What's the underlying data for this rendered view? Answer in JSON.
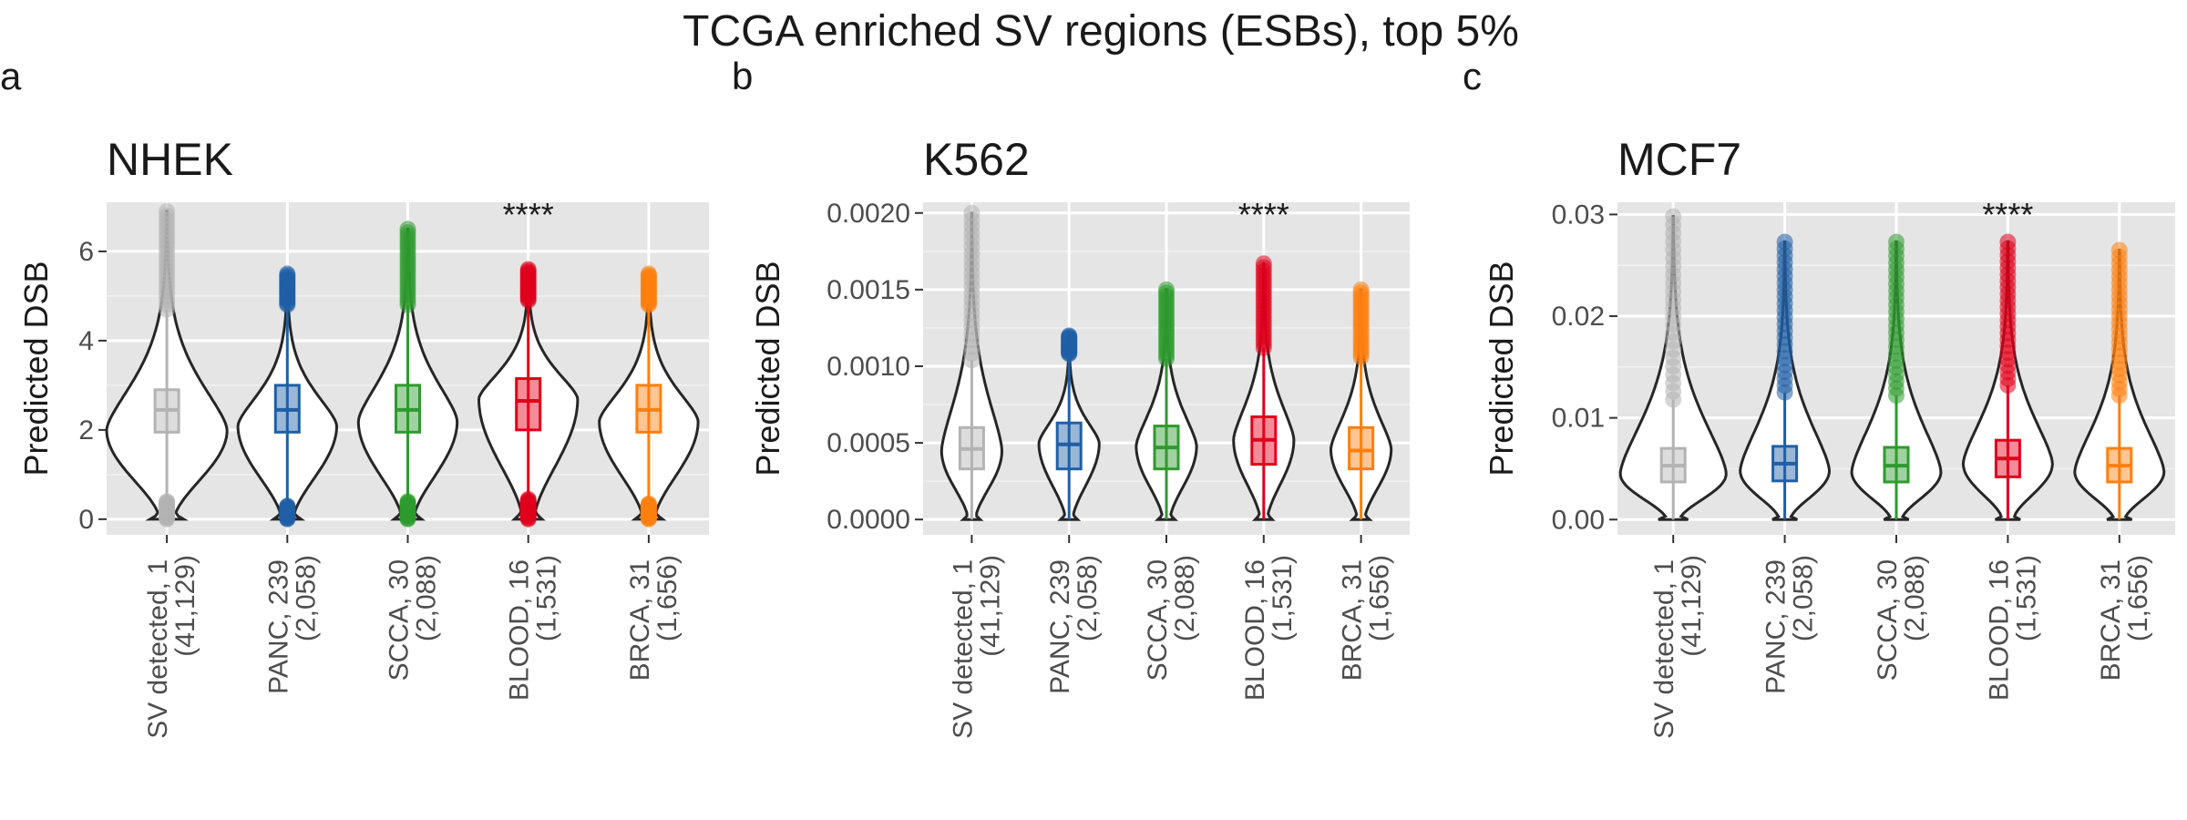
{
  "figure": {
    "title": "TCGA enriched SV regions (ESBs), top 5%"
  },
  "chart_data": [
    {
      "type": "violin",
      "panel_letter": "a",
      "title": "NHEK",
      "ylabel": "Predicted DSB",
      "ylim": [
        -0.35,
        7.1
      ],
      "yticks": [
        "0",
        "2",
        "4",
        "6"
      ],
      "ytick_values": [
        0,
        2,
        4,
        6
      ],
      "significance": "****",
      "significance_category_index": 3,
      "categories": [
        {
          "label_line1": "SV detected, 1",
          "label_line2": "(41,129)",
          "color": "#b3b3b3",
          "q1": 1.95,
          "median": 2.45,
          "q3": 2.9,
          "whisker_low": 0.3,
          "whisker_high": 4.7,
          "outlier_low": [
            0.0,
            0.4
          ],
          "outlier_high": [
            4.7,
            6.9
          ],
          "violin_min": 0.0,
          "violin_max": 6.9,
          "peak": 2.0,
          "max_width": 1.0
        },
        {
          "label_line1": "PANC, 239",
          "label_line2": "(2,058)",
          "color": "#1f5fa6",
          "q1": 1.95,
          "median": 2.45,
          "q3": 3.0,
          "whisker_low": 0.35,
          "whisker_high": 4.8,
          "outlier_low": [
            0.0,
            0.3
          ],
          "outlier_high": [
            4.8,
            5.5
          ],
          "violin_min": 0.0,
          "violin_max": 5.5,
          "peak": 2.1,
          "max_width": 0.82
        },
        {
          "label_line1": "SCCA, 30",
          "label_line2": "(2,088)",
          "color": "#2e9a2e",
          "q1": 1.95,
          "median": 2.45,
          "q3": 3.0,
          "whisker_low": 0.4,
          "whisker_high": 4.8,
          "outlier_low": [
            0.0,
            0.4
          ],
          "outlier_high": [
            4.8,
            6.5
          ],
          "violin_min": 0.0,
          "violin_max": 6.5,
          "peak": 2.2,
          "max_width": 0.82
        },
        {
          "label_line1": "BLOOD, 16",
          "label_line2": "(1,531)",
          "color": "#e0001b",
          "q1": 2.0,
          "median": 2.65,
          "q3": 3.15,
          "whisker_low": 0.45,
          "whisker_high": 4.9,
          "outlier_low": [
            0.0,
            0.45
          ],
          "outlier_high": [
            4.9,
            5.6
          ],
          "violin_min": 0.0,
          "violin_max": 5.6,
          "peak": 2.7,
          "max_width": 0.82
        },
        {
          "label_line1": "BRCA, 31",
          "label_line2": "(1,656)",
          "color": "#ff7f0e",
          "q1": 1.95,
          "median": 2.45,
          "q3": 3.0,
          "whisker_low": 0.35,
          "whisker_high": 4.8,
          "outlier_low": [
            0.0,
            0.35
          ],
          "outlier_high": [
            4.8,
            5.5
          ],
          "violin_min": 0.0,
          "violin_max": 5.5,
          "peak": 2.2,
          "max_width": 0.82
        }
      ]
    },
    {
      "type": "violin",
      "panel_letter": "b",
      "title": "K562",
      "ylabel": "Predicted DSB",
      "ylim": [
        -0.0001,
        0.00207
      ],
      "yticks": [
        "0.0000",
        "0.0005",
        "0.0010",
        "0.0015",
        "0.0020"
      ],
      "ytick_values": [
        0,
        0.0005,
        0.001,
        0.0015,
        0.002
      ],
      "significance": "****",
      "significance_category_index": 3,
      "categories": [
        {
          "label_line1": "SV detected, 1",
          "label_line2": "(41,129)",
          "color": "#b3b3b3",
          "q1": 0.00033,
          "median": 0.00046,
          "q3": 0.0006,
          "whisker_low": 0.0,
          "whisker_high": 0.00104,
          "outlier_low": [],
          "outlier_high": [
            0.00104,
            0.002
          ],
          "violin_min": 0.0,
          "violin_max": 0.002,
          "peak": 0.00045,
          "max_width": 0.62
        },
        {
          "label_line1": "PANC, 239",
          "label_line2": "(2,058)",
          "color": "#1f5fa6",
          "q1": 0.00033,
          "median": 0.00049,
          "q3": 0.00063,
          "whisker_low": 0.0,
          "whisker_high": 0.00108,
          "outlier_low": [],
          "outlier_high": [
            0.00108,
            0.0012
          ],
          "violin_min": 0.0,
          "violin_max": 0.0012,
          "peak": 0.0005,
          "max_width": 0.62
        },
        {
          "label_line1": "SCCA, 30",
          "label_line2": "(2,088)",
          "color": "#2e9a2e",
          "q1": 0.00033,
          "median": 0.00047,
          "q3": 0.00061,
          "whisker_low": 0.0,
          "whisker_high": 0.00105,
          "outlier_low": [],
          "outlier_high": [
            0.00105,
            0.0015
          ],
          "violin_min": 0.0,
          "violin_max": 0.0015,
          "peak": 0.00048,
          "max_width": 0.62
        },
        {
          "label_line1": "BLOOD, 16",
          "label_line2": "(1,531)",
          "color": "#e0001b",
          "q1": 0.00036,
          "median": 0.00052,
          "q3": 0.00067,
          "whisker_low": 0.0,
          "whisker_high": 0.00112,
          "outlier_low": [],
          "outlier_high": [
            0.00112,
            0.00167
          ],
          "violin_min": 0.0,
          "violin_max": 0.00167,
          "peak": 0.00052,
          "max_width": 0.62
        },
        {
          "label_line1": "BRCA, 31",
          "label_line2": "(1,656)",
          "color": "#ff7f0e",
          "q1": 0.00033,
          "median": 0.00045,
          "q3": 0.0006,
          "whisker_low": 0.0,
          "whisker_high": 0.00106,
          "outlier_low": [],
          "outlier_high": [
            0.00106,
            0.0015
          ],
          "violin_min": 0.0,
          "violin_max": 0.0015,
          "peak": 0.00046,
          "max_width": 0.62
        }
      ]
    },
    {
      "type": "violin",
      "panel_letter": "c",
      "title": "MCF7",
      "ylabel": "Predicted DSB",
      "ylim": [
        -0.0015,
        0.0312
      ],
      "yticks": [
        "0.00",
        "0.01",
        "0.02",
        "0.03"
      ],
      "ytick_values": [
        0,
        0.01,
        0.02,
        0.03
      ],
      "significance": "****",
      "significance_category_index": 3,
      "categories": [
        {
          "label_line1": "SV detected, 1",
          "label_line2": "(41,129)",
          "color": "#b3b3b3",
          "q1": 0.0037,
          "median": 0.0053,
          "q3": 0.007,
          "whisker_low": 0.0,
          "whisker_high": 0.0118,
          "outlier_low": [],
          "outlier_high": [
            0.0118,
            0.0298
          ],
          "violin_min": 0.0,
          "violin_max": 0.0298,
          "peak": 0.0045,
          "max_width": 0.95
        },
        {
          "label_line1": "PANC, 239",
          "label_line2": "(2,058)",
          "color": "#1f5fa6",
          "q1": 0.0038,
          "median": 0.0055,
          "q3": 0.0072,
          "whisker_low": 0.0,
          "whisker_high": 0.0125,
          "outlier_low": [],
          "outlier_high": [
            0.0125,
            0.0273
          ],
          "violin_min": 0.0,
          "violin_max": 0.0273,
          "peak": 0.0048,
          "max_width": 0.8
        },
        {
          "label_line1": "SCCA, 30",
          "label_line2": "(2,088)",
          "color": "#2e9a2e",
          "q1": 0.0037,
          "median": 0.0053,
          "q3": 0.0071,
          "whisker_low": 0.0,
          "whisker_high": 0.0122,
          "outlier_low": [],
          "outlier_high": [
            0.0122,
            0.0273
          ],
          "violin_min": 0.0,
          "violin_max": 0.0273,
          "peak": 0.0047,
          "max_width": 0.8
        },
        {
          "label_line1": "BLOOD, 16",
          "label_line2": "(1,531)",
          "color": "#e0001b",
          "q1": 0.0042,
          "median": 0.006,
          "q3": 0.0078,
          "whisker_low": 0.0,
          "whisker_high": 0.0132,
          "outlier_low": [],
          "outlier_high": [
            0.0132,
            0.0273
          ],
          "violin_min": 0.0,
          "violin_max": 0.0273,
          "peak": 0.0055,
          "max_width": 0.8
        },
        {
          "label_line1": "BRCA, 31",
          "label_line2": "(1,656)",
          "color": "#ff7f0e",
          "q1": 0.0037,
          "median": 0.0053,
          "q3": 0.007,
          "whisker_low": 0.0,
          "whisker_high": 0.0122,
          "outlier_low": [],
          "outlier_high": [
            0.0122,
            0.0265
          ],
          "violin_min": 0.0,
          "violin_max": 0.0265,
          "peak": 0.0047,
          "max_width": 0.8
        }
      ]
    }
  ]
}
